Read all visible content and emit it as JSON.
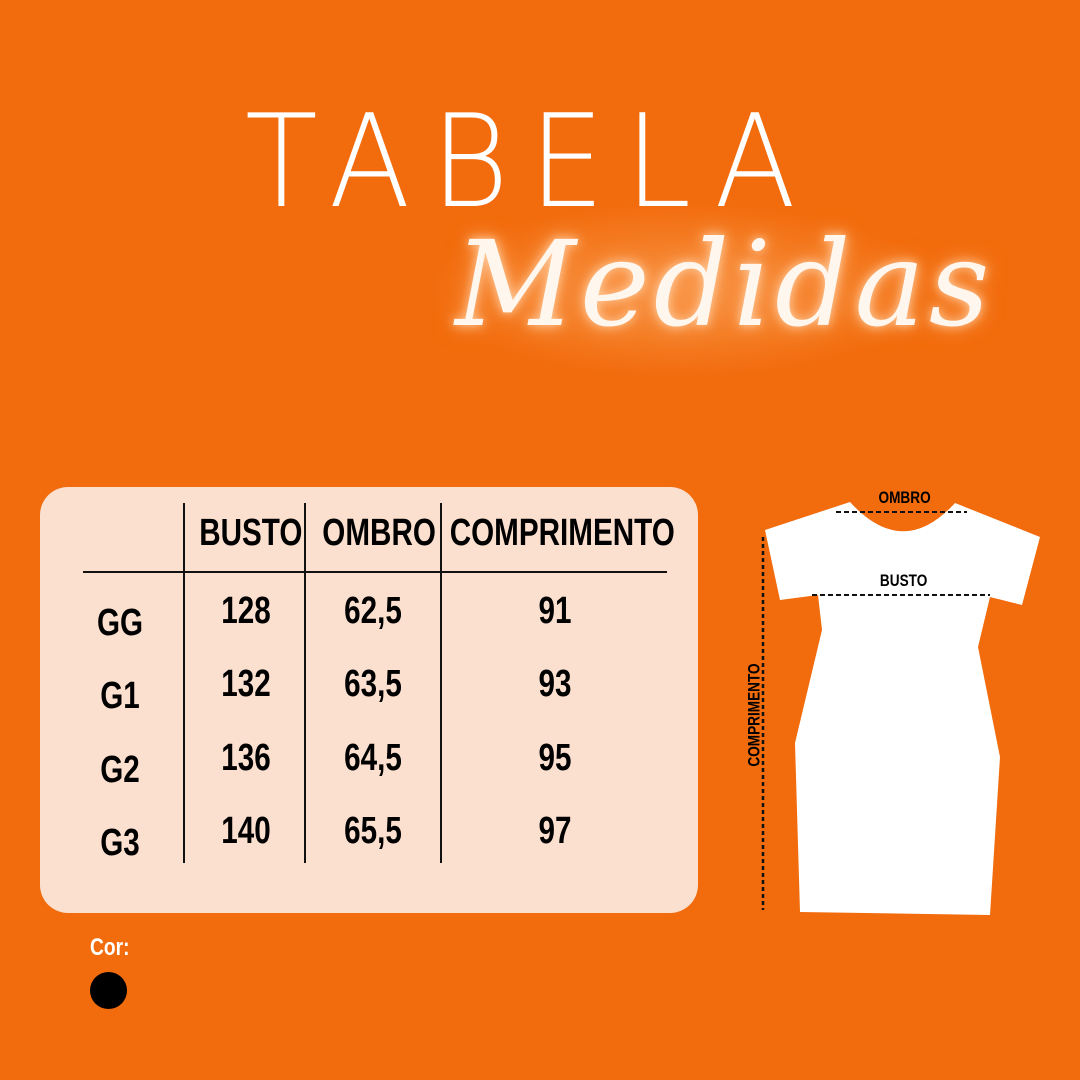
{
  "title": "TABELA",
  "subtitle": "Medidas",
  "table": {
    "headers": [
      "",
      "BUSTO",
      "OMBRO",
      "COMPRIMENTO"
    ],
    "rows": [
      {
        "size": "GG",
        "busto": "128",
        "ombro": "62,5",
        "comprimento": "91"
      },
      {
        "size": "G1",
        "busto": "132",
        "ombro": "63,5",
        "comprimento": "93"
      },
      {
        "size": "G2",
        "busto": "136",
        "ombro": "64,5",
        "comprimento": "95"
      },
      {
        "size": "G3",
        "busto": "140",
        "ombro": "65,5",
        "comprimento": "97"
      }
    ]
  },
  "diagram": {
    "ombro": "OMBRO",
    "busto": "BUSTO",
    "comprimento": "COMPRIMENTO"
  },
  "color_label": "Cor:",
  "colors": {
    "background": "#f26b0c",
    "panel": "#fbe0cf",
    "swatch": "#000000"
  }
}
